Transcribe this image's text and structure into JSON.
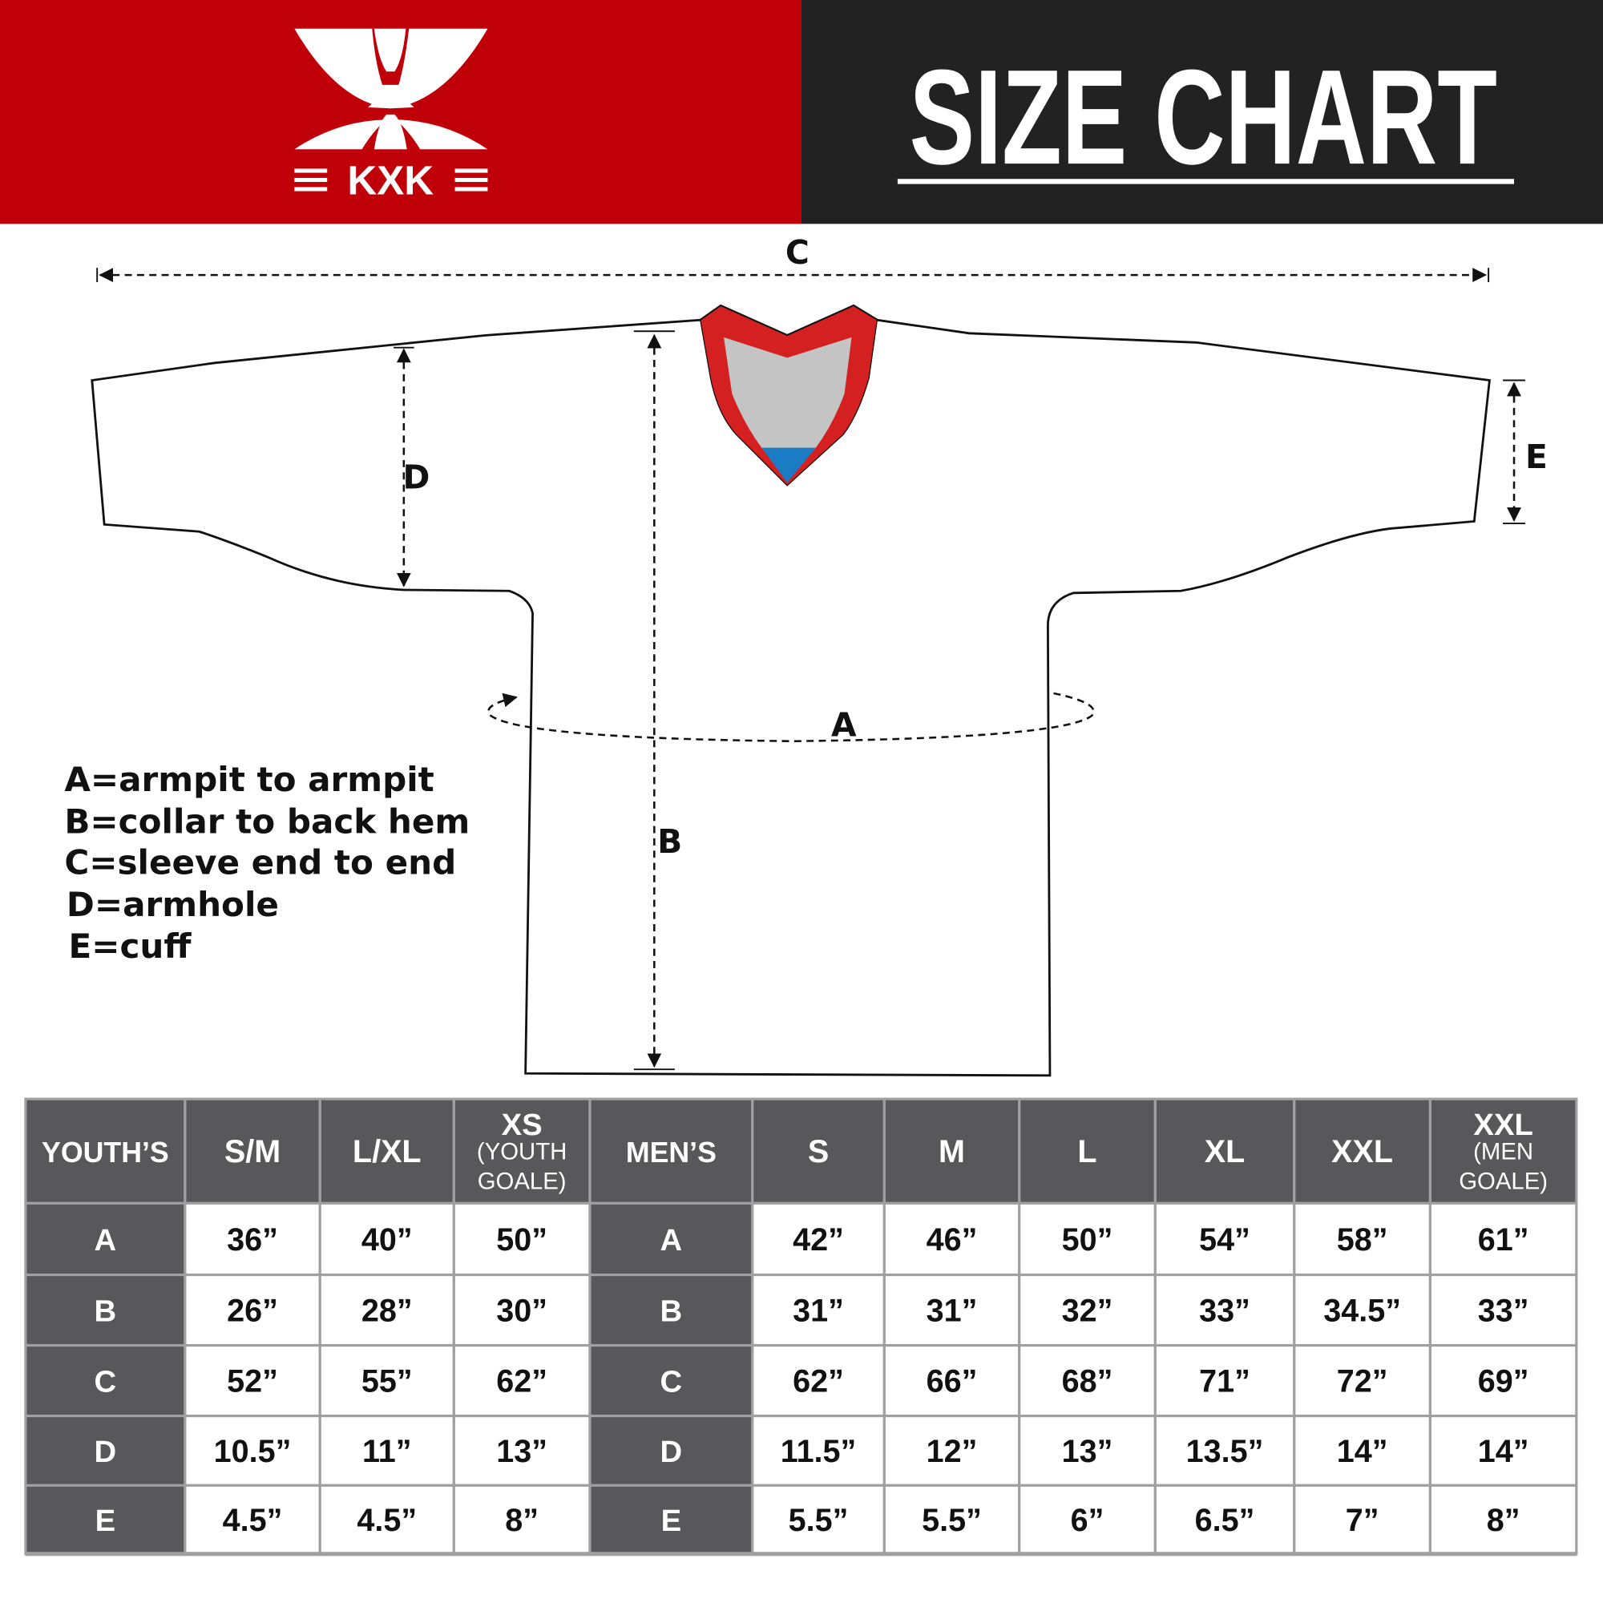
{
  "header": {
    "brand": "KXK",
    "title": "SIZE CHART",
    "colors": {
      "brand_red": "#c00008",
      "header_dark": "#222222",
      "table_header": "#58585a",
      "collar_red": "#d42020",
      "collar_blue": "#1a7cc4"
    }
  },
  "diagram": {
    "labels": {
      "a": "A",
      "b": "B",
      "c": "C",
      "d": "D",
      "e": "E"
    },
    "legend": [
      "A=armpit to armpit",
      "B=collar to back hem",
      "C=sleeve end to end",
      "D=armhole",
      "E=cuff"
    ]
  },
  "table": {
    "youth_header": "YOUTH’S",
    "men_header": "MEN’S",
    "youth_sizes": [
      {
        "main": "S/M",
        "sub": ""
      },
      {
        "main": "L/XL",
        "sub": ""
      },
      {
        "main": "XS",
        "sub": "(YOUTH GOALE)"
      }
    ],
    "men_sizes": [
      {
        "main": "S",
        "sub": ""
      },
      {
        "main": "M",
        "sub": ""
      },
      {
        "main": "L",
        "sub": ""
      },
      {
        "main": "XL",
        "sub": ""
      },
      {
        "main": "XXL",
        "sub": ""
      },
      {
        "main": "XXL",
        "sub": "(MEN GOALE)"
      }
    ],
    "rows": [
      {
        "label": "A",
        "youth": [
          "36”",
          "40”",
          "50”"
        ],
        "men": [
          "42”",
          "46”",
          "50”",
          "54”",
          "58”",
          "61”"
        ]
      },
      {
        "label": "B",
        "youth": [
          "26”",
          "28”",
          "30”"
        ],
        "men": [
          "31”",
          "31”",
          "32”",
          "33”",
          "34.5”",
          "33”"
        ]
      },
      {
        "label": "C",
        "youth": [
          "52”",
          "55”",
          "62”"
        ],
        "men": [
          "62”",
          "66”",
          "68”",
          "71”",
          "72”",
          "69”"
        ]
      },
      {
        "label": "D",
        "youth": [
          "10.5”",
          "11”",
          "13”"
        ],
        "men": [
          "11.5”",
          "12”",
          "13”",
          "13.5”",
          "14”",
          "14”"
        ]
      },
      {
        "label": "E",
        "youth": [
          "4.5”",
          "4.5”",
          "8”"
        ],
        "men": [
          "5.5”",
          "5.5”",
          "6”",
          "6.5”",
          "7”",
          "8”"
        ]
      }
    ]
  }
}
